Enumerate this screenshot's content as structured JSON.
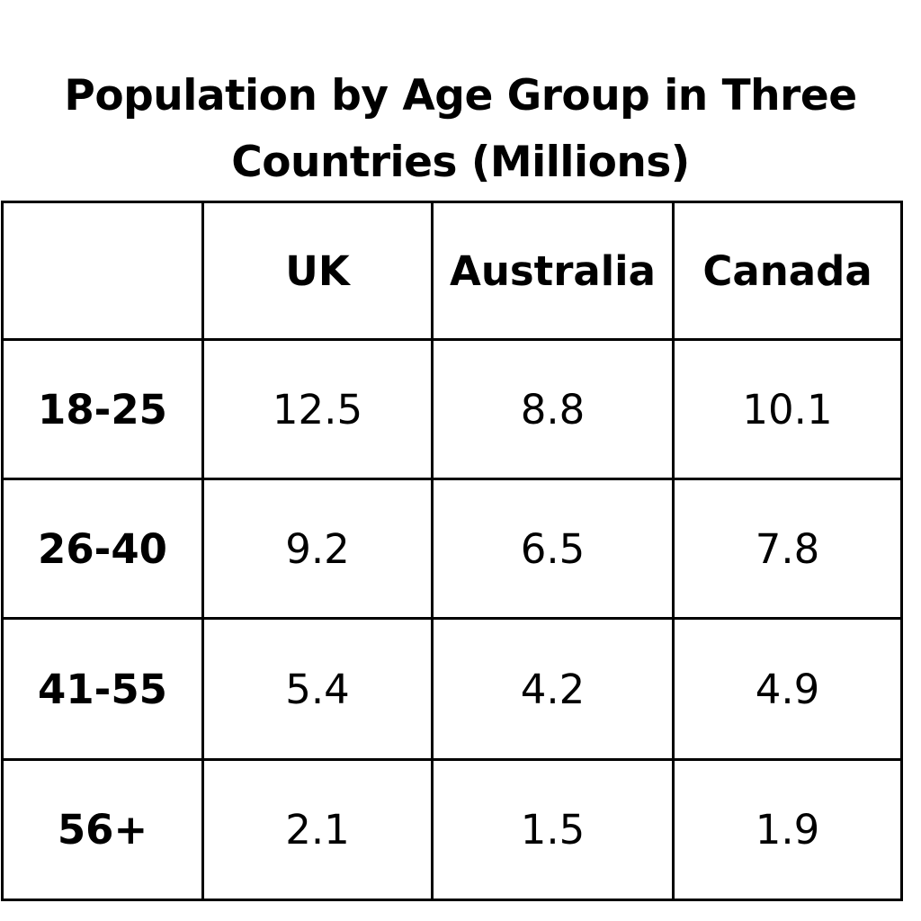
{
  "chart_data": {
    "type": "table",
    "title": "Population by Age Group in Three Countries (Millions)",
    "columns": [
      "",
      "UK",
      "Australia",
      "Canada"
    ],
    "rows": [
      {
        "label": "18-25",
        "values": [
          "12.5",
          "8.8",
          "10.1"
        ]
      },
      {
        "label": "26-40",
        "values": [
          "9.2",
          "6.5",
          "7.8"
        ]
      },
      {
        "label": "41-55",
        "values": [
          "5.4",
          "4.2",
          "4.9"
        ]
      },
      {
        "label": "56+",
        "values": [
          "2.1",
          "1.5",
          "1.9"
        ]
      }
    ],
    "colors": {
      "border": "#000000",
      "text": "#000000",
      "background": "#ffffff"
    }
  }
}
